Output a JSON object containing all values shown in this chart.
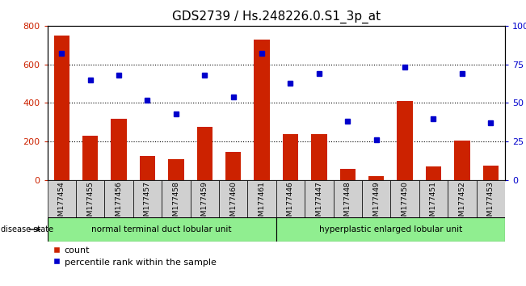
{
  "title": "GDS2739 / Hs.248226.0.S1_3p_at",
  "samples": [
    "GSM177454",
    "GSM177455",
    "GSM177456",
    "GSM177457",
    "GSM177458",
    "GSM177459",
    "GSM177460",
    "GSM177461",
    "GSM177446",
    "GSM177447",
    "GSM177448",
    "GSM177449",
    "GSM177450",
    "GSM177451",
    "GSM177452",
    "GSM177453"
  ],
  "counts": [
    750,
    230,
    320,
    125,
    110,
    275,
    145,
    730,
    240,
    240,
    60,
    20,
    410,
    70,
    205,
    75
  ],
  "percentiles": [
    82,
    65,
    68,
    52,
    43,
    68,
    54,
    82,
    63,
    69,
    38,
    26,
    73,
    40,
    69,
    37
  ],
  "group1_label": "normal terminal duct lobular unit",
  "group2_label": "hyperplastic enlarged lobular unit",
  "group1_count": 8,
  "group2_count": 8,
  "disease_state_label": "disease state",
  "bar_color": "#cc2200",
  "dot_color": "#0000cc",
  "ylim_left": [
    0,
    800
  ],
  "ylim_right": [
    0,
    100
  ],
  "yticks_left": [
    0,
    200,
    400,
    600,
    800
  ],
  "yticks_right": [
    0,
    25,
    50,
    75,
    100
  ],
  "bg_color": "#ffffff",
  "xtick_bg_color": "#d0d0d0",
  "group_bg": "#90ee90",
  "legend_count_label": "count",
  "legend_pct_label": "percentile rank within the sample",
  "title_fontsize": 11
}
